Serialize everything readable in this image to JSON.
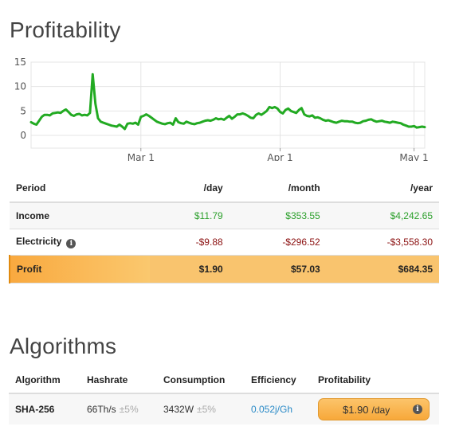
{
  "profitability": {
    "title": "Profitability",
    "chart_data": {
      "type": "line",
      "ylim": [
        0,
        15
      ],
      "yticks": [
        "0",
        "5",
        "10",
        "15"
      ],
      "xticks": [
        {
          "label": "Mar 1",
          "index": 41
        },
        {
          "label": "Apr 1",
          "index": 93
        },
        {
          "label": "May 1",
          "index": 143
        }
      ],
      "grid": true,
      "line_color": "#22aa22",
      "values": [
        2.7,
        2.4,
        2.2,
        3.0,
        3.8,
        4.2,
        4.2,
        4.1,
        4.5,
        4.6,
        4.7,
        4.6,
        5.0,
        5.3,
        4.8,
        4.2,
        4.0,
        4.3,
        4.4,
        4.1,
        4.2,
        4.1,
        4.6,
        12.5,
        6.5,
        3.5,
        2.8,
        2.6,
        2.4,
        2.2,
        2.0,
        1.9,
        1.8,
        2.2,
        1.8,
        1.3,
        2.4,
        2.5,
        2.4,
        2.6,
        2.2,
        3.8,
        4.0,
        4.3,
        4.0,
        3.6,
        3.2,
        2.8,
        2.6,
        2.4,
        2.3,
        2.5,
        2.6,
        2.2,
        3.5,
        2.7,
        2.5,
        2.4,
        2.8,
        2.6,
        2.4,
        2.3,
        2.5,
        2.6,
        2.8,
        3.0,
        3.1,
        3.0,
        3.2,
        3.5,
        3.3,
        3.4,
        3.2,
        3.6,
        4.0,
        3.4,
        3.8,
        4.3,
        4.3,
        4.5,
        4.3,
        4.0,
        3.6,
        3.5,
        4.2,
        4.5,
        4.2,
        4.6,
        5.0,
        5.8,
        5.6,
        5.8,
        5.5,
        4.8,
        4.5,
        5.2,
        5.5,
        5.0,
        4.8,
        4.6,
        5.2,
        5.6,
        4.3,
        4.0,
        3.9,
        4.1,
        3.6,
        3.7,
        3.5,
        3.2,
        3.0,
        3.1,
        2.9,
        2.7,
        2.6,
        2.8,
        3.0,
        2.9,
        2.9,
        2.8,
        2.8,
        2.6,
        2.5,
        2.6,
        2.9,
        3.0,
        3.2,
        3.3,
        3.0,
        2.8,
        2.9,
        3.0,
        2.8,
        2.7,
        2.6,
        2.8,
        2.7,
        2.6,
        2.5,
        2.2,
        2.0,
        1.8,
        1.8,
        1.9,
        1.6,
        1.7,
        1.8,
        1.7
      ]
    },
    "table": {
      "headers": [
        "Period",
        "/day",
        "/month",
        "/year"
      ],
      "income": {
        "label": "Income",
        "day": "$11.79",
        "month": "$353.55",
        "year": "$4,242.65"
      },
      "electricity": {
        "label": "Electricity",
        "day": "-$9.88",
        "month": "-$296.52",
        "year": "-$3,558.30"
      },
      "profit": {
        "label": "Profit",
        "day": "$1.90",
        "month": "$57.03",
        "year": "$684.35"
      }
    }
  },
  "algorithms": {
    "title": "Algorithms",
    "headers": [
      "Algorithm",
      "Hashrate",
      "Consumption",
      "Efficiency",
      "Profitability"
    ],
    "rows": [
      {
        "algorithm": "SHA-256",
        "hashrate": "66Th/s",
        "hashrate_var": "±5%",
        "consumption": "3432W",
        "consumption_var": "±5%",
        "efficiency": "0.052j/Gh",
        "profitability": "$1.90",
        "profitability_unit": "/day"
      }
    ]
  },
  "icons": {
    "info": "info-icon"
  }
}
